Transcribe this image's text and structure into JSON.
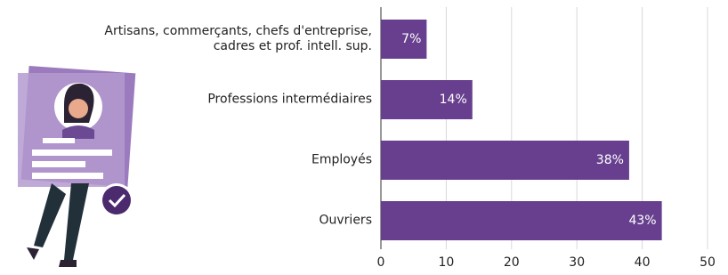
{
  "chart_data": {
    "type": "bar",
    "orientation": "horizontal",
    "categories": [
      "Artisans, commerçants, chefs d'entreprise,\ncadres et prof. intell. sup.",
      "Professions intermédiaires",
      "Employés",
      "Ouvriers"
    ],
    "values": [
      7,
      14,
      38,
      43
    ],
    "value_labels": [
      "7%",
      "14%",
      "38%",
      "43%"
    ],
    "color": "#673f8e",
    "xlim": [
      0,
      50
    ],
    "xticks": [
      0,
      10,
      20,
      30,
      40,
      50
    ],
    "grid": true
  }
}
